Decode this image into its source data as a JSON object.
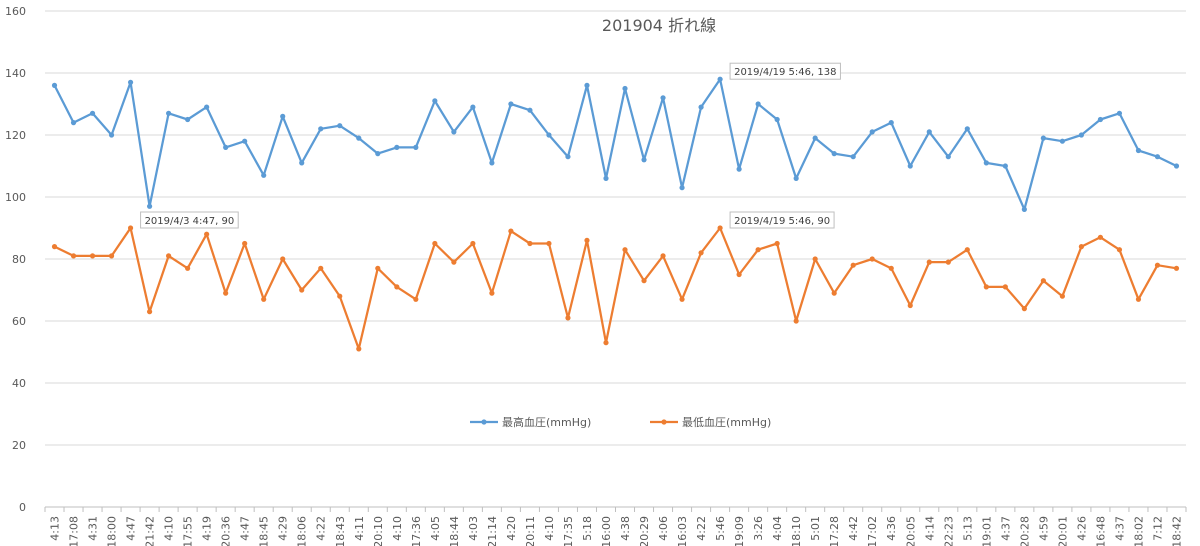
{
  "chart_data": {
    "type": "line",
    "title": "201904 折れ線",
    "ylim": [
      0,
      160
    ],
    "yticks": [
      0,
      20,
      40,
      60,
      80,
      100,
      120,
      140,
      160
    ],
    "grid": true,
    "legend_position": "middle",
    "categories": [
      "4:13",
      "17:08",
      "4:31",
      "18:00",
      "4:47",
      "21:42",
      "4:10",
      "17:55",
      "4:19",
      "20:36",
      "4:47",
      "18:45",
      "4:29",
      "18:06",
      "4:22",
      "18:43",
      "4:11",
      "20:10",
      "4:10",
      "17:36",
      "4:05",
      "18:44",
      "4:03",
      "21:14",
      "4:20",
      "20:11",
      "4:10",
      "17:35",
      "5:18",
      "16:00",
      "4:38",
      "20:29",
      "4:06",
      "16:03",
      "4:22",
      "5:46",
      "19:09",
      "3:26",
      "4:04",
      "18:10",
      "5:01",
      "17:28",
      "4:42",
      "17:02",
      "4:36",
      "20:05",
      "4:14",
      "22:23",
      "5:13",
      "19:01",
      "4:37",
      "20:28",
      "4:59",
      "20:01",
      "4:26",
      "16:48",
      "4:37",
      "18:02",
      "7:12",
      "18:42"
    ],
    "series": [
      {
        "name": "最高血圧(mmHg)",
        "color": "#5b9bd5",
        "values": [
          136,
          124,
          127,
          120,
          137,
          97,
          127,
          125,
          129,
          116,
          118,
          107,
          126,
          111,
          122,
          123,
          119,
          114,
          116,
          116,
          131,
          121,
          129,
          111,
          130,
          128,
          120,
          113,
          136,
          106,
          135,
          112,
          132,
          103,
          129,
          138,
          109,
          130,
          125,
          106,
          119,
          114,
          113,
          121,
          124,
          110,
          121,
          113,
          122,
          111,
          110,
          96,
          119,
          118,
          120,
          125,
          127,
          115,
          113,
          110
        ]
      },
      {
        "name": "最低血圧(mmHg)",
        "color": "#ed7d31",
        "values": [
          84,
          81,
          81,
          81,
          90,
          63,
          81,
          77,
          88,
          69,
          85,
          67,
          80,
          70,
          77,
          68,
          51,
          77,
          71,
          67,
          85,
          79,
          85,
          69,
          89,
          85,
          85,
          61,
          86,
          53,
          83,
          73,
          81,
          67,
          82,
          90,
          75,
          83,
          85,
          60,
          80,
          69,
          78,
          80,
          77,
          65,
          79,
          79,
          83,
          71,
          71,
          64,
          73,
          68,
          84,
          87,
          83,
          67,
          78,
          77
        ]
      }
    ],
    "annotations": [
      {
        "series": 0,
        "index": 35,
        "text": "2019/4/19 5:46, 138"
      },
      {
        "series": 1,
        "index": 4,
        "text": "2019/4/3 4:47, 90"
      },
      {
        "series": 1,
        "index": 35,
        "text": "2019/4/19 5:46, 90"
      }
    ]
  }
}
